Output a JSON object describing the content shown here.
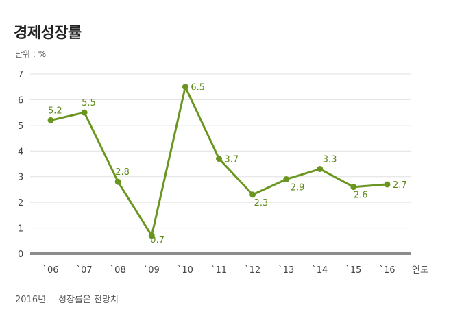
{
  "title": "경제성장률",
  "unit_label": "단위 : %",
  "footnote": {
    "year": "2016년",
    "text": "성장률은 전망치"
  },
  "colors": {
    "line": "#6a961f",
    "marker": "#6a961f",
    "label": "#5d8a16",
    "grid": "#e0e0e0",
    "baseline": "#8c8c8c"
  },
  "chart_data": {
    "type": "line",
    "title": "경제성장률",
    "ylabel": "단위 : %",
    "xlabel": "연도",
    "categories": [
      "`06",
      "`07",
      "`08",
      "`09",
      "`10",
      "`11",
      "`12",
      "`13",
      "`14",
      "`15",
      "`16"
    ],
    "series": [
      {
        "values": [
          5.2,
          5.5,
          2.8,
          0.7,
          6.5,
          3.7,
          2.3,
          2.9,
          3.3,
          2.6,
          2.7
        ],
        "labels": [
          "5.2",
          "5.5",
          "2.8",
          "0.7",
          "6.5",
          "3.7",
          "2.3",
          "2.9",
          "3.3",
          "2.6",
          "2.7"
        ]
      }
    ],
    "yticks": [
      "0",
      "1",
      "2",
      "3",
      "4",
      "5",
      "6",
      "7"
    ],
    "ylim": [
      0,
      7
    ],
    "grid": true
  }
}
